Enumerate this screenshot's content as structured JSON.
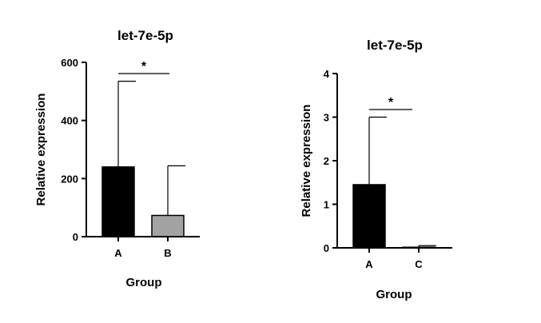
{
  "chart_data": [
    {
      "type": "bar",
      "title": "let-7e-5p",
      "xlabel": "Group",
      "ylabel": "Relative expression",
      "categories": [
        "A",
        "B"
      ],
      "values": [
        240,
        73
      ],
      "error_upper": [
        535,
        244
      ],
      "bar_colors": [
        "#000000",
        "#a3a3a3"
      ],
      "ylim": [
        0,
        600
      ],
      "yticks": [
        "0",
        "200",
        "400",
        "600"
      ],
      "significance": "*",
      "grid": false
    },
    {
      "type": "bar",
      "title": "let-7e-5p",
      "xlabel": "Group",
      "ylabel": "Relative expression",
      "categories": [
        "A",
        "C"
      ],
      "values": [
        1.45,
        0.01
      ],
      "error_upper": [
        3.0,
        0.05
      ],
      "bar_colors": [
        "#000000",
        "#000000"
      ],
      "ylim": [
        0,
        4
      ],
      "yticks": [
        "0",
        "1",
        "2",
        "3",
        "4"
      ],
      "significance": "*",
      "grid": false
    }
  ]
}
